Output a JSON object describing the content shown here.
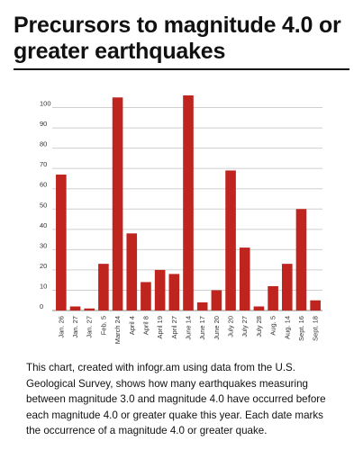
{
  "title": "Precursors to magnitude 4.0 or greater earthquakes",
  "caption": "This chart, created with infogr.am using data from the U.S. Geological Survey, shows how many earthquakes measuring between magnitude 3.0 and magnitude 4.0 have occurred before each magnitude 4.0 or greater quake this year. Each date marks the occurrence of a magnitude 4.0 or greater quake.",
  "colors": {
    "bar": "#c0241f",
    "grid": "#cfcfcf",
    "text": "#111111"
  },
  "chart_data": {
    "type": "bar",
    "categories": [
      "Jan. 26",
      "Jan. 27",
      "Jan. 27",
      "Feb. 5",
      "March 24",
      "April 4",
      "April 8",
      "April 19",
      "April 27",
      "June 14",
      "June 17",
      "June 20",
      "July 20",
      "July 27",
      "July 28",
      "Aug. 5",
      "Aug. 14",
      "Sept. 16",
      "Sept. 18"
    ],
    "values": [
      67,
      2,
      1,
      23,
      105,
      38,
      14,
      20,
      18,
      106,
      4,
      10,
      69,
      31,
      2,
      12,
      23,
      50,
      5
    ],
    "yticks": [
      0,
      10,
      20,
      30,
      40,
      50,
      60,
      70,
      80,
      90,
      100
    ],
    "ylim": [
      0,
      110
    ],
    "grid": true,
    "title": "",
    "xlabel": "",
    "ylabel": ""
  }
}
